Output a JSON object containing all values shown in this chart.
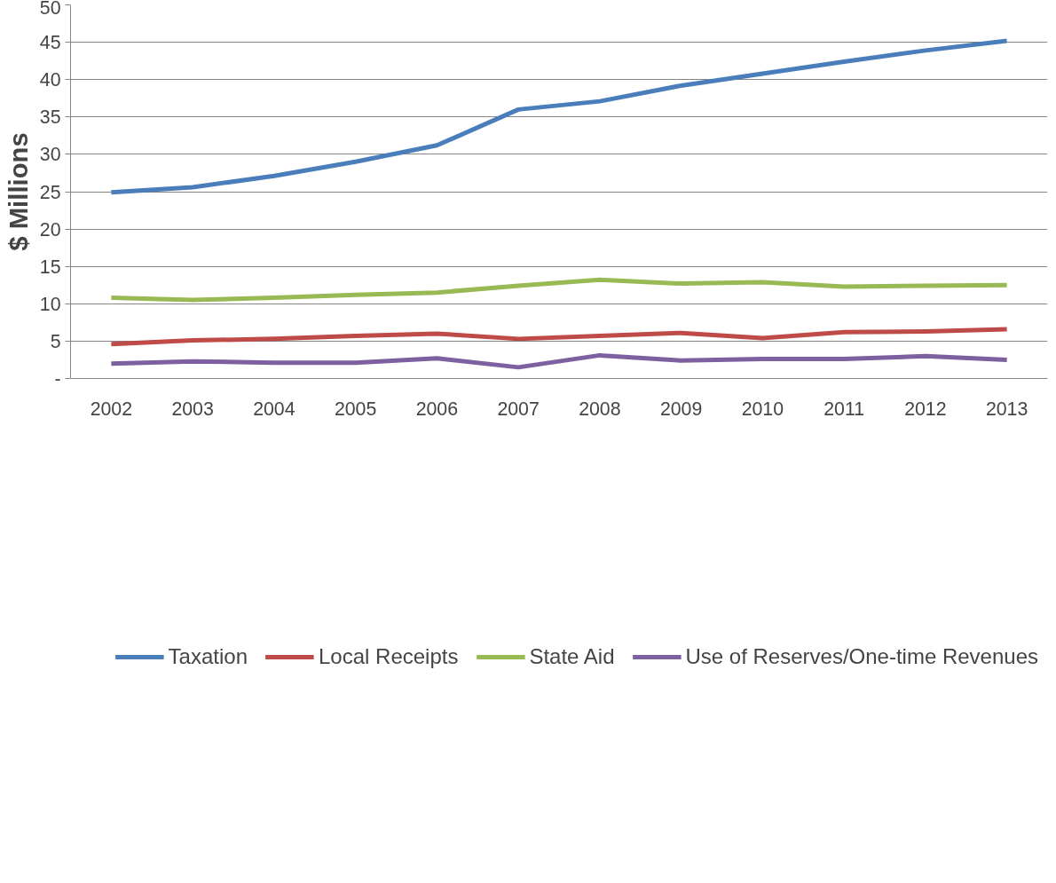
{
  "chart_data": {
    "type": "line",
    "ylabel": "$ Millions",
    "categories": [
      "2002",
      "2003",
      "2004",
      "2005",
      "2006",
      "2007",
      "2008",
      "2009",
      "2010",
      "2011",
      "2012",
      "2013"
    ],
    "ylim": [
      0,
      50
    ],
    "yticks": [
      {
        "value": 0,
        "label": "-"
      },
      5,
      10,
      15,
      20,
      25,
      30,
      35,
      40,
      45,
      50
    ],
    "grid": "y",
    "legend": "bottom",
    "marker": "none",
    "line_style": "solid",
    "series": [
      {
        "name": "Taxation",
        "color": "#4a7ebb",
        "values": [
          24.9,
          25.6,
          27.1,
          29.0,
          31.2,
          36.0,
          37.1,
          39.2,
          40.8,
          42.4,
          43.9,
          45.2
        ]
      },
      {
        "name": "Local Receipts",
        "color": "#be4b48",
        "values": [
          4.6,
          5.1,
          5.3,
          5.7,
          6.0,
          5.3,
          5.7,
          6.1,
          5.4,
          6.2,
          6.3,
          6.6
        ]
      },
      {
        "name": "State Aid",
        "color": "#98b954",
        "values": [
          10.8,
          10.5,
          10.8,
          11.2,
          11.5,
          12.4,
          13.2,
          12.7,
          12.9,
          12.3,
          12.4,
          12.5
        ]
      },
      {
        "name": "Use of Reserves/One-time Revenues",
        "color": "#7d60a0",
        "values": [
          2.0,
          2.3,
          2.1,
          2.1,
          2.7,
          1.5,
          3.1,
          2.4,
          2.6,
          2.6,
          3.0,
          2.5
        ]
      }
    ]
  }
}
